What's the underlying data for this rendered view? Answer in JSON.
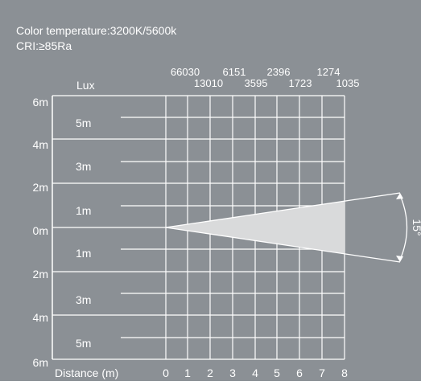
{
  "header": {
    "color_temperature": "Color temperature:3200K/5600k",
    "cri": "CRI:≥85Ra"
  },
  "lux_label": "Lux",
  "lux_top_values": [
    "66030",
    "6151",
    "2396",
    "1274"
  ],
  "lux_bottom_values": [
    "13010",
    "3595",
    "1723",
    "1035"
  ],
  "y_axis_labels": [
    "6m",
    "4m",
    "2m",
    "0m",
    "2m",
    "4m",
    "6m"
  ],
  "beam_radius_labels": [
    "5m",
    "3m",
    "1m",
    "1m",
    "3m",
    "5m"
  ],
  "x_axis_title": "Distance (m)",
  "x_ticks": [
    "0",
    "1",
    "2",
    "3",
    "4",
    "5",
    "6",
    "7",
    "8"
  ],
  "beam_angle": "15°",
  "colors": {
    "background": "#8b9095",
    "lines": "#ffffff",
    "beam_fill": "#d9dadb",
    "text": "#ffffff"
  }
}
